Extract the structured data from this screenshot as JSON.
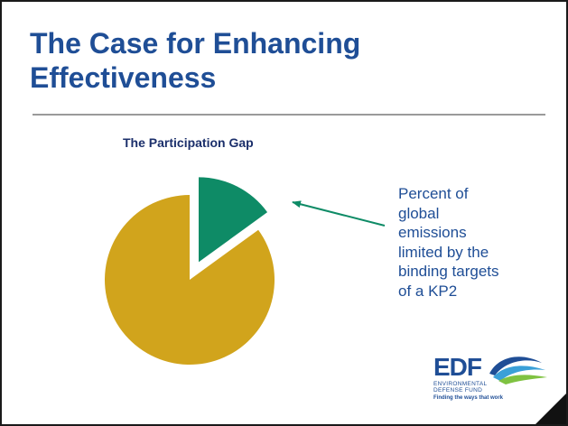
{
  "slide": {
    "title": "The Case for Enhancing Effectiveness",
    "annotation_lines": [
      "Percent of",
      "global",
      "emissions",
      "limited by the",
      "binding targets",
      "of a KP2"
    ]
  },
  "chart_data": {
    "type": "pie",
    "title": "The Participation Gap",
    "categories": [
      "",
      ""
    ],
    "values": [
      15,
      85
    ],
    "exploded": [
      true,
      false
    ],
    "colors": [
      "#0e8b66",
      "#d1a41c"
    ],
    "legend": "none"
  },
  "logo": {
    "wordmark": "EDF",
    "name_line1": "ENVIRONMENTAL",
    "name_line2": "DEFENSE FUND",
    "tagline": "Finding the ways that work"
  },
  "colors": {
    "title_blue": "#1f4e96",
    "chart_title": "#1b2f6b",
    "rule": "#9a9a9a",
    "arrow": "#0e8b66"
  }
}
